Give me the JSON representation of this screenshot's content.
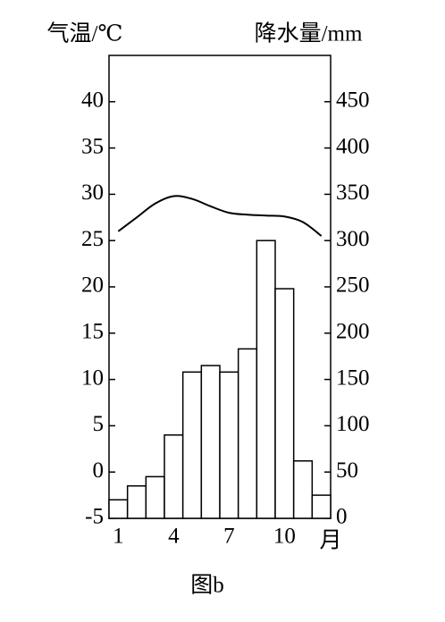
{
  "chart_data": {
    "type": "bar-line",
    "y_label": "气温/℃",
    "y2_label": "降水量/mm",
    "x_label": "月",
    "caption": "图b",
    "categories": [
      "1",
      null,
      null,
      "4",
      null,
      null,
      "7",
      null,
      null,
      "10",
      null,
      null
    ],
    "series": [
      {
        "name": "降水量",
        "type": "bar",
        "axis": "y2",
        "color": "#ffffff",
        "values": [
          20,
          35,
          45,
          90,
          158,
          165,
          158,
          183,
          300,
          248,
          62,
          25
        ]
      },
      {
        "name": "气温",
        "type": "line",
        "axis": "y",
        "color": "#000000",
        "values": [
          26,
          27.5,
          29,
          29.8,
          29.5,
          28.7,
          28,
          27.8,
          27.7,
          27.6,
          27,
          25.5
        ]
      }
    ],
    "ylim": [
      -5,
      45
    ],
    "yticks": [
      -5,
      0,
      5,
      10,
      15,
      20,
      25,
      30,
      35,
      40
    ],
    "y2lim": [
      0,
      500
    ],
    "y2ticks": [
      0,
      50,
      100,
      150,
      200,
      250,
      300,
      350,
      400,
      450
    ]
  }
}
